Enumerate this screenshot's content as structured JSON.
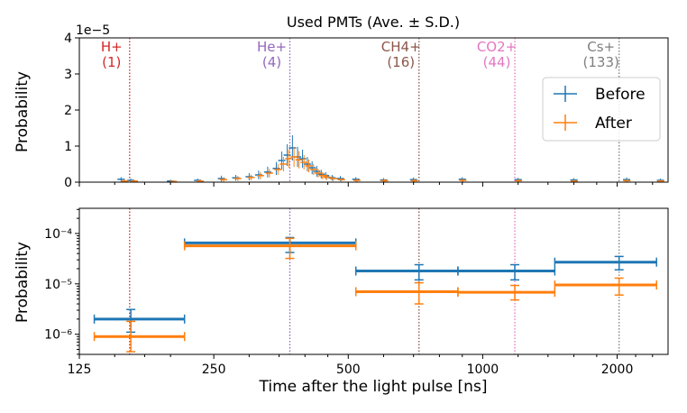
{
  "chart_data": [
    {
      "type": "scatter",
      "panel": "top",
      "title": "Used PMTs (Ave. ± S.D.)",
      "ylabel": "Probability",
      "y_scale_label": "1e−5",
      "y_multiplier": 1e-05,
      "ylim": [
        0,
        4
      ],
      "yticks": [
        0,
        1,
        2,
        3,
        4
      ],
      "x_scale": "log",
      "xlim": [
        125,
        2600
      ],
      "legend": {
        "placement": "right",
        "entries": [
          "Before",
          "After"
        ]
      },
      "series": [
        {
          "name": "Before",
          "color": "#1f77b4",
          "x": [
            155,
            163,
            200,
            230,
            260,
            280,
            300,
            315,
            330,
            345,
            355,
            365,
            375,
            385,
            395,
            405,
            415,
            425,
            435,
            445,
            460,
            480,
            520,
            600,
            700,
            900,
            1200,
            1600,
            2100,
            2500
          ],
          "y": [
            0.08,
            0.05,
            0.03,
            0.05,
            0.1,
            0.12,
            0.15,
            0.2,
            0.28,
            0.38,
            0.6,
            0.75,
            0.95,
            0.7,
            0.65,
            0.5,
            0.4,
            0.3,
            0.22,
            0.18,
            0.12,
            0.1,
            0.08,
            0.06,
            0.07,
            0.08,
            0.07,
            0.06,
            0.07,
            0.05
          ],
          "err": [
            0.06,
            0.05,
            0.04,
            0.05,
            0.08,
            0.08,
            0.1,
            0.12,
            0.15,
            0.18,
            0.25,
            0.3,
            0.35,
            0.28,
            0.25,
            0.2,
            0.18,
            0.15,
            0.12,
            0.1,
            0.08,
            0.07,
            0.06,
            0.05,
            0.06,
            0.06,
            0.05,
            0.05,
            0.06,
            0.05
          ]
        },
        {
          "name": "After",
          "color": "#ff7f0e",
          "x": [
            158,
            166,
            203,
            233,
            263,
            283,
            303,
            318,
            333,
            348,
            358,
            368,
            378,
            388,
            398,
            408,
            418,
            428,
            438,
            448,
            463,
            483,
            523,
            603,
            703,
            903,
            1203,
            1603,
            2103,
            2503
          ],
          "y": [
            0.03,
            0.03,
            0.02,
            0.03,
            0.07,
            0.1,
            0.13,
            0.18,
            0.25,
            0.35,
            0.5,
            0.65,
            0.7,
            0.62,
            0.55,
            0.45,
            0.35,
            0.25,
            0.18,
            0.14,
            0.1,
            0.07,
            0.05,
            0.04,
            0.04,
            0.05,
            0.04,
            0.03,
            0.04,
            0.03
          ],
          "err": [
            0.04,
            0.04,
            0.03,
            0.04,
            0.06,
            0.07,
            0.08,
            0.1,
            0.12,
            0.15,
            0.2,
            0.25,
            0.28,
            0.24,
            0.2,
            0.18,
            0.15,
            0.12,
            0.1,
            0.08,
            0.07,
            0.05,
            0.04,
            0.04,
            0.04,
            0.04,
            0.04,
            0.03,
            0.04,
            0.03
          ]
        }
      ],
      "ion_lines": [
        {
          "label": "H+",
          "mass": "(1)",
          "x": 162,
          "color": "#d62728"
        },
        {
          "label": "He+",
          "mass": "(4)",
          "x": 370,
          "color": "#9467bd"
        },
        {
          "label": "CH4+",
          "mass": "(16)",
          "x": 720,
          "color": "#8c564b"
        },
        {
          "label": "CO2+",
          "mass": "(44)",
          "x": 1180,
          "color": "#e377c2"
        },
        {
          "label": "Cs+",
          "mass": "(133)",
          "x": 2020,
          "color": "#7f7f7f"
        }
      ]
    },
    {
      "type": "scatter",
      "panel": "bottom",
      "xlabel": "Time after the light pulse [ns]",
      "ylabel": "Probability",
      "x_scale": "log",
      "xlim": [
        125,
        2600
      ],
      "xticks": [
        125,
        250,
        500,
        1000,
        2000
      ],
      "xtick_labels": [
        "125",
        "250",
        "500",
        "1000",
        "2000"
      ],
      "y_scale": "log",
      "ylim_log10": [
        -6.4,
        -3.5
      ],
      "yticks_log10": [
        -6,
        -5,
        -4
      ],
      "ytick_labels": [
        "10⁻⁶",
        "10⁻⁵",
        "10⁻⁴"
      ],
      "series": [
        {
          "name": "Before",
          "color": "#1f77b4",
          "bins": [
            [
              135,
              215
            ],
            [
              215,
              520
            ],
            [
              520,
              880
            ],
            [
              880,
              1450
            ],
            [
              1450,
              2450
            ]
          ],
          "centers": [
            163,
            370,
            720,
            1180,
            2020
          ],
          "values": [
            2e-06,
            6.5e-05,
            1.8e-05,
            1.8e-05,
            2.7e-05
          ],
          "err_low": [
            9e-07,
            2.3e-05,
            6e-06,
            6e-06,
            8e-06
          ],
          "err_high": [
            1.1e-06,
            1.8e-05,
            6e-06,
            6e-06,
            8e-06
          ]
        },
        {
          "name": "After",
          "color": "#ff7f0e",
          "bins": [
            [
              135,
              215
            ],
            [
              215,
              520
            ],
            [
              520,
              880
            ],
            [
              880,
              1450
            ],
            [
              1450,
              2450
            ]
          ],
          "centers": [
            163,
            370,
            720,
            1180,
            2020
          ],
          "values": [
            9e-07,
            5.7e-05,
            7e-06,
            6.8e-06,
            9.5e-06
          ],
          "err_low": [
            4.5e-07,
            2.5e-05,
            3e-06,
            2e-06,
            3.5e-06
          ],
          "err_high": [
            9e-07,
            2.3e-05,
            3.5e-06,
            2.5e-06,
            3.5e-06
          ]
        }
      ]
    }
  ]
}
